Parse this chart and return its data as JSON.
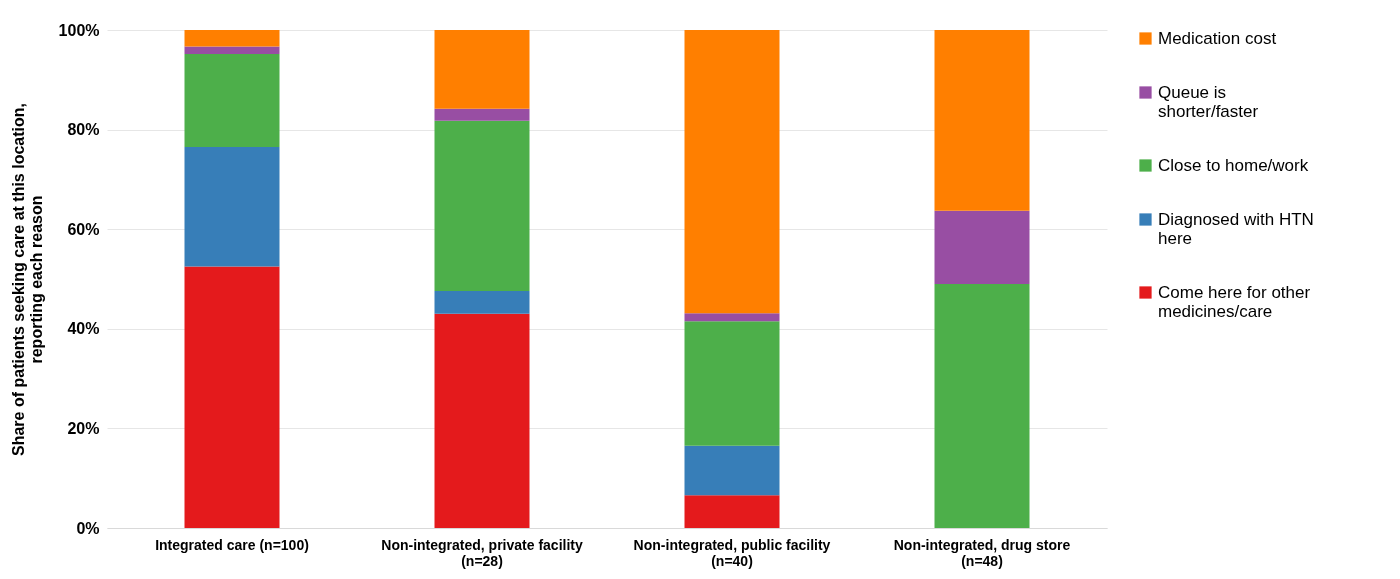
{
  "chart_data": {
    "type": "bar",
    "stacked": true,
    "ylabel": "Share of patients seeking care at this location, reporting each reason",
    "categories": [
      "Integrated care (n=100)",
      "Non-integrated, private facility (n=28)",
      "Non-integrated, public facility (n=40)",
      "Non-integrated, drug store (n=48)"
    ],
    "series": [
      {
        "name": "Come here for other medicines/care",
        "color": "#e41a1c",
        "values": [
          52.5,
          43.0,
          6.6,
          0
        ]
      },
      {
        "name": "Diagnosed with HTN here",
        "color": "#377eb8",
        "values": [
          24.0,
          4.6,
          9.9,
          0
        ]
      },
      {
        "name": "Close to home/work",
        "color": "#4daf4a",
        "values": [
          18.7,
          34.2,
          25.0,
          49.0
        ]
      },
      {
        "name": "Queue is shorter/faster",
        "color": "#984ea3",
        "values": [
          1.5,
          2.4,
          1.6,
          14.7
        ]
      },
      {
        "name": "Medication cost",
        "color": "#ff7f00",
        "values": [
          3.3,
          15.8,
          56.9,
          36.3
        ]
      }
    ],
    "ylim": [
      0,
      100
    ],
    "yticks": [
      {
        "value": 0,
        "label": "0%"
      },
      {
        "value": 20,
        "label": "20%"
      },
      {
        "value": 40,
        "label": "40%"
      },
      {
        "value": 60,
        "label": "60%"
      },
      {
        "value": 80,
        "label": "80%"
      },
      {
        "value": 100,
        "label": "100%"
      }
    ],
    "grid": "y",
    "legend": "right"
  }
}
